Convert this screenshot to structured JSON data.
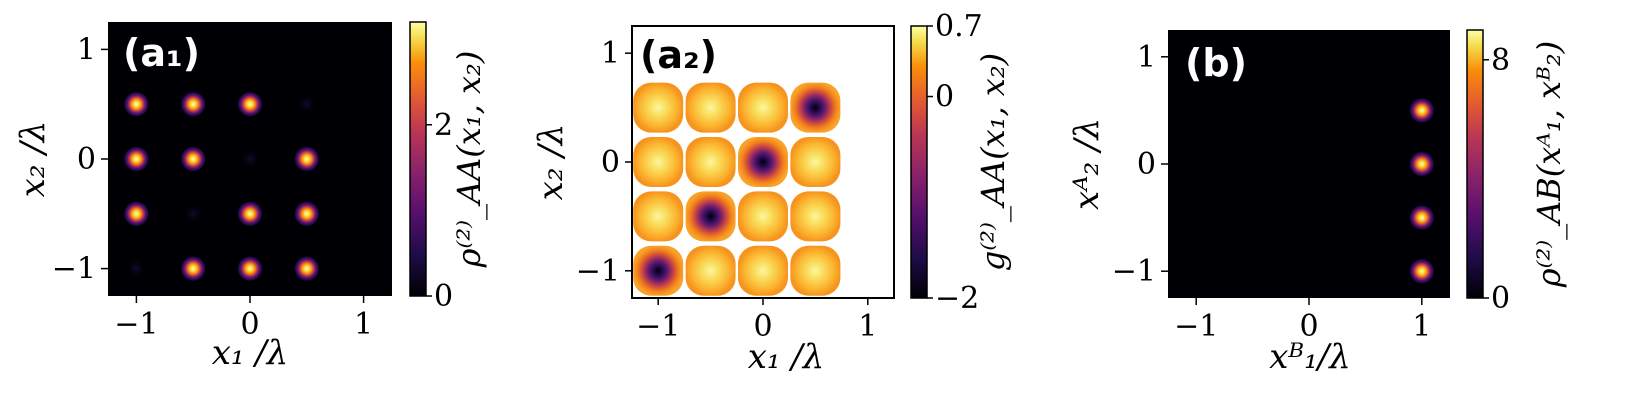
{
  "chart_data": [
    {
      "type": "heatmap",
      "panel_label": "(a₁)",
      "xlabel": "x₁ /λ",
      "ylabel": "x₂ /λ",
      "xlim": [
        -1.25,
        1.25
      ],
      "ylim": [
        -1.25,
        1.25
      ],
      "xticks": [
        -1,
        0,
        1
      ],
      "xtick_labels": [
        "−1",
        "0",
        "1"
      ],
      "yticks": [
        -1,
        0,
        1
      ],
      "ytick_labels": [
        "−1",
        "0",
        "1"
      ],
      "colorbar": {
        "label": "ρ⁽²⁾_AA(x₁, x₂)",
        "ticks": [
          0,
          2
        ],
        "tick_labels": [
          "0",
          "2"
        ],
        "range": [
          0,
          3.2
        ]
      },
      "colormap": "inferno",
      "background": "#000004",
      "peaks": [
        {
          "x": -1,
          "y": 0.5,
          "v": 3.0
        },
        {
          "x": -0.5,
          "y": 0.5,
          "v": 3.0
        },
        {
          "x": 0,
          "y": 0.5,
          "v": 3.0
        },
        {
          "x": 0.5,
          "y": 0.5,
          "v": 0.05
        },
        {
          "x": -1,
          "y": 0,
          "v": 3.0
        },
        {
          "x": -0.5,
          "y": 0,
          "v": 3.0
        },
        {
          "x": 0,
          "y": 0,
          "v": 0.05
        },
        {
          "x": 0.5,
          "y": 0,
          "v": 3.0
        },
        {
          "x": -1,
          "y": -0.5,
          "v": 3.0
        },
        {
          "x": -0.5,
          "y": -0.5,
          "v": 0.05
        },
        {
          "x": 0,
          "y": -0.5,
          "v": 3.0
        },
        {
          "x": 0.5,
          "y": -0.5,
          "v": 3.0
        },
        {
          "x": -1,
          "y": -1,
          "v": 0.05
        },
        {
          "x": -0.5,
          "y": -1,
          "v": 3.0
        },
        {
          "x": 0,
          "y": -1,
          "v": 3.0
        },
        {
          "x": 0.5,
          "y": -1,
          "v": 3.0
        }
      ]
    },
    {
      "type": "heatmap",
      "panel_label": "(a₂)",
      "xlabel": "x₁ /λ",
      "ylabel": "x₂ /λ",
      "xlim": [
        -1.25,
        1.25
      ],
      "ylim": [
        -1.25,
        1.25
      ],
      "xticks": [
        -1,
        0,
        1
      ],
      "xtick_labels": [
        "−1",
        "0",
        "1"
      ],
      "yticks": [
        -1,
        0,
        1
      ],
      "ytick_labels": [
        "−1",
        "0",
        "1"
      ],
      "colorbar": {
        "label": "g⁽²⁾_AA(x₁, x₂)",
        "ticks": [
          0.7,
          0,
          -2
        ],
        "tick_labels": [
          "0.7",
          "0",
          "−2"
        ],
        "range": [
          -2,
          0.7
        ]
      },
      "colormap": "inferno",
      "background": "#ffffff",
      "disks": [
        {
          "x": -1,
          "y": 0.5,
          "v": 0.05
        },
        {
          "x": -0.5,
          "y": 0.5,
          "v": 0.05
        },
        {
          "x": 0,
          "y": 0.5,
          "v": 0.05
        },
        {
          "x": 0.5,
          "y": 0.5,
          "v": -2
        },
        {
          "x": -1,
          "y": 0,
          "v": 0.05
        },
        {
          "x": -0.5,
          "y": 0,
          "v": 0.05
        },
        {
          "x": 0,
          "y": 0,
          "v": -2
        },
        {
          "x": 0.5,
          "y": 0,
          "v": 0.05
        },
        {
          "x": -1,
          "y": -0.5,
          "v": 0.05
        },
        {
          "x": -0.5,
          "y": -0.5,
          "v": -2
        },
        {
          "x": 0,
          "y": -0.5,
          "v": 0.05
        },
        {
          "x": 0.5,
          "y": -0.5,
          "v": 0.05
        },
        {
          "x": -1,
          "y": -1,
          "v": -2
        },
        {
          "x": -0.5,
          "y": -1,
          "v": 0.05
        },
        {
          "x": 0,
          "y": -1,
          "v": 0.05
        },
        {
          "x": 0.5,
          "y": -1,
          "v": 0.05
        }
      ]
    },
    {
      "type": "heatmap",
      "panel_label": "(b)",
      "xlabel": "xᴮ₁/λ",
      "ylabel": "xᴬ₂ /λ",
      "xlim": [
        -1.25,
        1.25
      ],
      "ylim": [
        -1.25,
        1.25
      ],
      "xticks": [
        -1,
        0,
        1
      ],
      "xtick_labels": [
        "−1",
        "0",
        "1"
      ],
      "yticks": [
        -1,
        0,
        1
      ],
      "ytick_labels": [
        "−1",
        "0",
        "1"
      ],
      "colorbar": {
        "label": "ρ⁽²⁾_AB(xᴬ₁, xᴮ₂)",
        "ticks": [
          8,
          0
        ],
        "tick_labels": [
          "8",
          "0"
        ],
        "range": [
          0,
          9
        ]
      },
      "colormap": "inferno",
      "background": "#000004",
      "peaks": [
        {
          "x": 1,
          "y": 0.5,
          "v": 8.5
        },
        {
          "x": 1,
          "y": 0,
          "v": 8.5
        },
        {
          "x": 1,
          "y": -0.5,
          "v": 8.5
        },
        {
          "x": 1,
          "y": -1,
          "v": 8.5
        }
      ]
    }
  ]
}
